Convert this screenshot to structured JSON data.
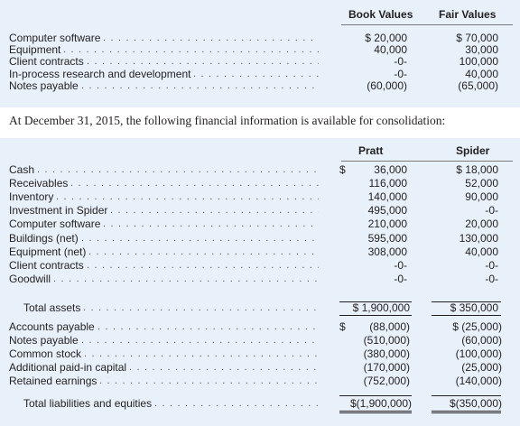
{
  "top_table": {
    "headers": {
      "book": "Book Values",
      "fair": "Fair Values"
    },
    "rows": [
      {
        "label": "Computer software",
        "book": "$ 20,000",
        "fair": "$ 70,000"
      },
      {
        "label": "Equipment",
        "book": "40,000",
        "fair": "30,000"
      },
      {
        "label": "Client contracts",
        "book": "-0-",
        "fair": "100,000"
      },
      {
        "label": "In-process research and development",
        "book": "-0-",
        "fair": "40,000"
      },
      {
        "label": "Notes payable",
        "book": "(60,000)",
        "fair": "(65,000)"
      }
    ]
  },
  "caption": "At December 31, 2015, the following financial information is available for consolidation:",
  "bottom_table": {
    "headers": {
      "pratt": "Pratt",
      "spider": "Spider"
    },
    "assets": [
      {
        "label": "Cash",
        "pratt_cur": "$",
        "pratt": "36,000",
        "spider": "$ 18,000"
      },
      {
        "label": "Receivables",
        "pratt_cur": "",
        "pratt": "116,000",
        "spider": "52,000"
      },
      {
        "label": "Inventory",
        "pratt_cur": "",
        "pratt": "140,000",
        "spider": "90,000"
      },
      {
        "label": "Investment in Spider",
        "pratt_cur": "",
        "pratt": "495,000",
        "spider": "-0-"
      },
      {
        "label": "Computer software",
        "pratt_cur": "",
        "pratt": "210,000",
        "spider": "20,000"
      },
      {
        "label": "Buildings (net)",
        "pratt_cur": "",
        "pratt": "595,000",
        "spider": "130,000"
      },
      {
        "label": "Equipment (net)",
        "pratt_cur": "",
        "pratt": "308,000",
        "spider": "40,000"
      },
      {
        "label": "Client contracts",
        "pratt_cur": "",
        "pratt": "-0-",
        "spider": "-0-"
      },
      {
        "label": "Goodwill",
        "pratt_cur": "",
        "pratt": "-0-",
        "spider": "-0-"
      }
    ],
    "total_assets": {
      "label": "Total assets",
      "pratt": "$ 1,900,000",
      "spider": "$ 350,000"
    },
    "liabilities": [
      {
        "label": "Accounts payable",
        "pratt_cur": "$",
        "pratt": "(88,000)",
        "spider": "$ (25,000)"
      },
      {
        "label": "Notes payable",
        "pratt_cur": "",
        "pratt": "(510,000)",
        "spider": "(60,000)"
      },
      {
        "label": "Common stock",
        "pratt_cur": "",
        "pratt": "(380,000)",
        "spider": "(100,000)"
      },
      {
        "label": "Additional paid-in capital",
        "pratt_cur": "",
        "pratt": "(170,000)",
        "spider": "(25,000)"
      },
      {
        "label": "Retained earnings",
        "pratt_cur": "",
        "pratt": "(752,000)",
        "spider": "(140,000)"
      }
    ],
    "total_liab": {
      "label": "Total liabilities and equities",
      "pratt": "$(1,900,000)",
      "spider": "$(350,000)"
    }
  },
  "colors": {
    "panel": "#e8f1f9",
    "text": "#231f20"
  }
}
